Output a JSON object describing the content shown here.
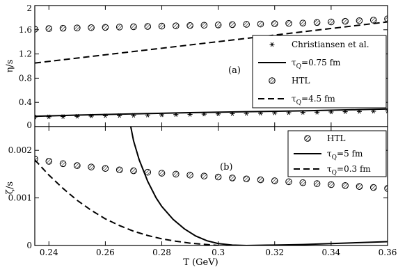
{
  "chart_data": [
    {
      "panel": "(a)",
      "type": "line",
      "ylabel": "η/s",
      "xlabel": "",
      "xlim": [
        0.235,
        0.36
      ],
      "ylim": [
        0,
        2
      ],
      "yticks": [
        0,
        0.4,
        0.8,
        1.2,
        1.6,
        2
      ],
      "ytick_labels": [
        "0",
        "0.4",
        "0.8",
        "1.2",
        "1.6",
        "2"
      ],
      "legend_position": "right",
      "series": [
        {
          "name": "Christiansen et al.",
          "marker": "asterisk",
          "x": [
            0.235,
            0.24,
            0.245,
            0.25,
            0.255,
            0.26,
            0.265,
            0.27,
            0.275,
            0.28,
            0.285,
            0.29,
            0.295,
            0.3,
            0.305,
            0.31,
            0.315,
            0.32,
            0.325,
            0.33,
            0.335,
            0.34,
            0.345,
            0.35,
            0.355,
            0.36
          ],
          "y": [
            0.158,
            0.162,
            0.166,
            0.17,
            0.174,
            0.178,
            0.182,
            0.186,
            0.19,
            0.194,
            0.198,
            0.202,
            0.206,
            0.21,
            0.214,
            0.218,
            0.222,
            0.226,
            0.23,
            0.234,
            0.238,
            0.242,
            0.246,
            0.25,
            0.254,
            0.258
          ]
        },
        {
          "name": "τ_Q=0.75 fm",
          "line": "solid",
          "x": [
            0.235,
            0.25,
            0.27,
            0.29,
            0.31,
            0.33,
            0.35,
            0.36
          ],
          "y": [
            0.17,
            0.19,
            0.21,
            0.23,
            0.245,
            0.26,
            0.28,
            0.29
          ]
        },
        {
          "name": "HTL",
          "marker": "hatched-circle",
          "x": [
            0.235,
            0.24,
            0.245,
            0.25,
            0.255,
            0.26,
            0.265,
            0.27,
            0.275,
            0.28,
            0.285,
            0.29,
            0.295,
            0.3,
            0.305,
            0.31,
            0.315,
            0.32,
            0.325,
            0.33,
            0.335,
            0.34,
            0.345,
            0.35,
            0.355,
            0.36
          ],
          "y": [
            1.61,
            1.62,
            1.625,
            1.63,
            1.635,
            1.64,
            1.645,
            1.65,
            1.655,
            1.66,
            1.665,
            1.67,
            1.675,
            1.68,
            1.685,
            1.69,
            1.695,
            1.7,
            1.705,
            1.71,
            1.72,
            1.73,
            1.74,
            1.75,
            1.76,
            1.78
          ]
        },
        {
          "name": "τ_Q=4.5 fm",
          "line": "dashed",
          "x": [
            0.235,
            0.36
          ],
          "y": [
            1.05,
            1.73
          ]
        }
      ]
    },
    {
      "panel": "(b)",
      "type": "line",
      "ylabel": "ζ/s",
      "xlabel": "T (GeV)",
      "xlim": [
        0.235,
        0.36
      ],
      "ylim": [
        0,
        0.0025
      ],
      "yticks": [
        0,
        0.001,
        0.002
      ],
      "ytick_labels": [
        "0",
        "0.001",
        "0.002"
      ],
      "xticks": [
        0.24,
        0.26,
        0.28,
        0.3,
        0.32,
        0.34,
        0.36
      ],
      "xtick_labels": [
        "0.24",
        "0.26",
        "0.28",
        "0.3",
        "0.32",
        "0.34",
        "0.36"
      ],
      "legend_position": "top-right",
      "series": [
        {
          "name": "HTL",
          "marker": "hatched-circle",
          "x": [
            0.235,
            0.24,
            0.245,
            0.25,
            0.255,
            0.26,
            0.265,
            0.27,
            0.275,
            0.28,
            0.285,
            0.29,
            0.295,
            0.3,
            0.305,
            0.31,
            0.315,
            0.32,
            0.325,
            0.33,
            0.335,
            0.34,
            0.345,
            0.35,
            0.355,
            0.36
          ],
          "y": [
            0.00182,
            0.00177,
            0.00172,
            0.00168,
            0.00165,
            0.00162,
            0.00159,
            0.00157,
            0.00154,
            0.00152,
            0.0015,
            0.00148,
            0.00146,
            0.00144,
            0.00142,
            0.0014,
            0.00138,
            0.00136,
            0.00134,
            0.00132,
            0.0013,
            0.00128,
            0.00126,
            0.00124,
            0.00122,
            0.0012
          ]
        },
        {
          "name": "τ_Q=5 fm",
          "line": "solid",
          "x": [
            0.269,
            0.27,
            0.272,
            0.275,
            0.278,
            0.28,
            0.284,
            0.288,
            0.292,
            0.296,
            0.3,
            0.305,
            0.31,
            0.32,
            0.33,
            0.34,
            0.35,
            0.36
          ],
          "y": [
            0.0025,
            0.0022,
            0.0018,
            0.00135,
            0.001,
            0.00082,
            0.00055,
            0.00035,
            0.0002,
            0.0001,
            4e-05,
            1e-05,
            0.0,
            1e-05,
            2e-05,
            4e-05,
            6e-05,
            8e-05
          ]
        },
        {
          "name": "τ_Q=0.3 fm",
          "line": "dashed",
          "x": [
            0.235,
            0.24,
            0.245,
            0.25,
            0.255,
            0.26,
            0.265,
            0.27,
            0.275,
            0.28,
            0.285,
            0.29,
            0.3
          ],
          "y": [
            0.0018,
            0.00148,
            0.0012,
            0.00095,
            0.00074,
            0.00056,
            0.00042,
            0.0003,
            0.00021,
            0.00014,
            9e-05,
            5e-05,
            0.0
          ]
        }
      ]
    }
  ]
}
